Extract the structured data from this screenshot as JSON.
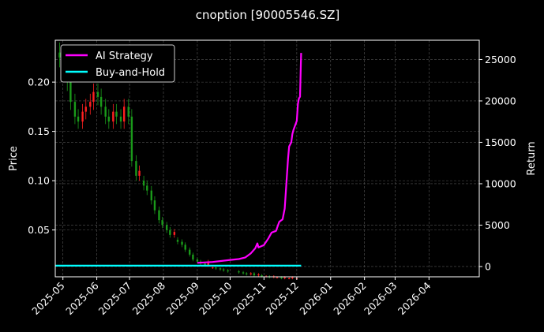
{
  "chart_data": {
    "type": "candlestick+line",
    "title": "cnoption [90005546.SZ]",
    "ylabel_left": "Price",
    "ylabel_right": "Return",
    "ylim_left": [
      0.0025,
      0.2425
    ],
    "ylim_right": [
      -1240,
      27330
    ],
    "xlim": [
      "2025-04-24",
      "2026-05-17"
    ],
    "grid": true,
    "legend_position": "top-left",
    "left_ticks": [
      "0.05",
      "0.10",
      "0.15",
      "0.20"
    ],
    "left_tick_values": [
      0.05,
      0.1,
      0.15,
      0.2
    ],
    "right_ticks": [
      "0",
      "5000",
      "10000",
      "15000",
      "20000",
      "25000"
    ],
    "right_tick_values": [
      0,
      5000,
      10000,
      15000,
      20000,
      25000
    ],
    "x_ticks": [
      "2025-05",
      "2025-06",
      "2025-07",
      "2025-08",
      "2025-09",
      "2025-10",
      "2025-11",
      "2025-12",
      "2026-01",
      "2026-02",
      "2026-03",
      "2026-04"
    ],
    "x_tick_dates": [
      "2025-05-01",
      "2025-06-01",
      "2025-07-01",
      "2025-08-01",
      "2025-09-01",
      "2025-10-01",
      "2025-11-01",
      "2025-12-01",
      "2026-01-01",
      "2026-02-01",
      "2026-03-01",
      "2026-04-01"
    ],
    "candles": {
      "up_color": "#ff2020",
      "down_color": "#1a9a1a",
      "dates": [
        "2025-04-28",
        "2025-05-01",
        "2025-05-05",
        "2025-05-08",
        "2025-05-12",
        "2025-05-15",
        "2025-05-19",
        "2025-05-22",
        "2025-05-26",
        "2025-05-29",
        "2025-06-02",
        "2025-06-05",
        "2025-06-09",
        "2025-06-12",
        "2025-06-16",
        "2025-06-19",
        "2025-06-23",
        "2025-06-26",
        "2025-06-30",
        "2025-07-03",
        "2025-07-07",
        "2025-07-10",
        "2025-07-14",
        "2025-07-17",
        "2025-07-21",
        "2025-07-24",
        "2025-07-28",
        "2025-07-31",
        "2025-08-04",
        "2025-08-07",
        "2025-08-11",
        "2025-08-14",
        "2025-08-18",
        "2025-08-21",
        "2025-08-25",
        "2025-08-28",
        "2025-09-01",
        "2025-09-04",
        "2025-09-08",
        "2025-09-11",
        "2025-09-15",
        "2025-09-18",
        "2025-09-22",
        "2025-09-25",
        "2025-09-29",
        "2025-10-09",
        "2025-10-13",
        "2025-10-16",
        "2025-10-20",
        "2025-10-23",
        "2025-10-27",
        "2025-10-30",
        "2025-11-03",
        "2025-11-06",
        "2025-11-10",
        "2025-11-13",
        "2025-11-17",
        "2025-11-20",
        "2025-11-24",
        "2025-11-27",
        "2025-12-01"
      ],
      "open": [
        0.23,
        0.225,
        0.215,
        0.2,
        0.18,
        0.165,
        0.16,
        0.17,
        0.175,
        0.18,
        0.19,
        0.185,
        0.175,
        0.165,
        0.16,
        0.17,
        0.165,
        0.16,
        0.175,
        0.165,
        0.12,
        0.105,
        0.1,
        0.095,
        0.09,
        0.08,
        0.07,
        0.06,
        0.055,
        0.05,
        0.045,
        0.04,
        0.038,
        0.035,
        0.03,
        0.025,
        0.02,
        0.018,
        0.016,
        0.014,
        0.012,
        0.012,
        0.011,
        0.01,
        0.009,
        0.008,
        0.007,
        0.006,
        0.005,
        0.006,
        0.004,
        0.004,
        0.003,
        0.003,
        0.002,
        0.002,
        0.002,
        0.001,
        0.001,
        0.001,
        0.001
      ],
      "close": [
        0.225,
        0.215,
        0.2,
        0.18,
        0.165,
        0.16,
        0.17,
        0.175,
        0.18,
        0.19,
        0.185,
        0.175,
        0.165,
        0.16,
        0.17,
        0.165,
        0.16,
        0.175,
        0.165,
        0.12,
        0.105,
        0.11,
        0.095,
        0.09,
        0.08,
        0.07,
        0.06,
        0.055,
        0.05,
        0.045,
        0.048,
        0.038,
        0.035,
        0.03,
        0.025,
        0.02,
        0.018,
        0.016,
        0.014,
        0.018,
        0.012,
        0.011,
        0.01,
        0.009,
        0.008,
        0.007,
        0.006,
        0.005,
        0.006,
        0.004,
        0.005,
        0.003,
        0.003,
        0.002,
        0.003,
        0.002,
        0.001,
        0.002,
        0.001,
        0.002,
        0.001
      ]
    },
    "series": [
      {
        "name": "AI Strategy",
        "color": "#ff00ff",
        "dates": [
          "2025-09-01",
          "2025-09-15",
          "2025-10-01",
          "2025-10-09",
          "2025-10-15",
          "2025-10-20",
          "2025-10-24",
          "2025-10-26",
          "2025-10-27",
          "2025-11-01",
          "2025-11-05",
          "2025-11-08",
          "2025-11-12",
          "2025-11-15",
          "2025-11-18",
          "2025-11-20",
          "2025-11-21",
          "2025-11-23",
          "2025-11-24",
          "2025-11-26",
          "2025-11-27",
          "2025-11-28",
          "2025-12-01",
          "2025-12-02",
          "2025-12-03",
          "2025-12-04",
          "2025-12-05"
        ],
        "values": [
          450,
          550,
          800,
          900,
          1100,
          1600,
          2200,
          2800,
          2300,
          2600,
          3400,
          4100,
          4300,
          5400,
          5700,
          7000,
          9000,
          13000,
          14500,
          15000,
          16000,
          16500,
          17600,
          19600,
          20300,
          20500,
          25800
        ]
      },
      {
        "name": "Buy-and-Hold",
        "color": "#00ffff",
        "dates": [
          "2025-04-24",
          "2025-12-05"
        ],
        "values": [
          100,
          100
        ]
      }
    ]
  }
}
